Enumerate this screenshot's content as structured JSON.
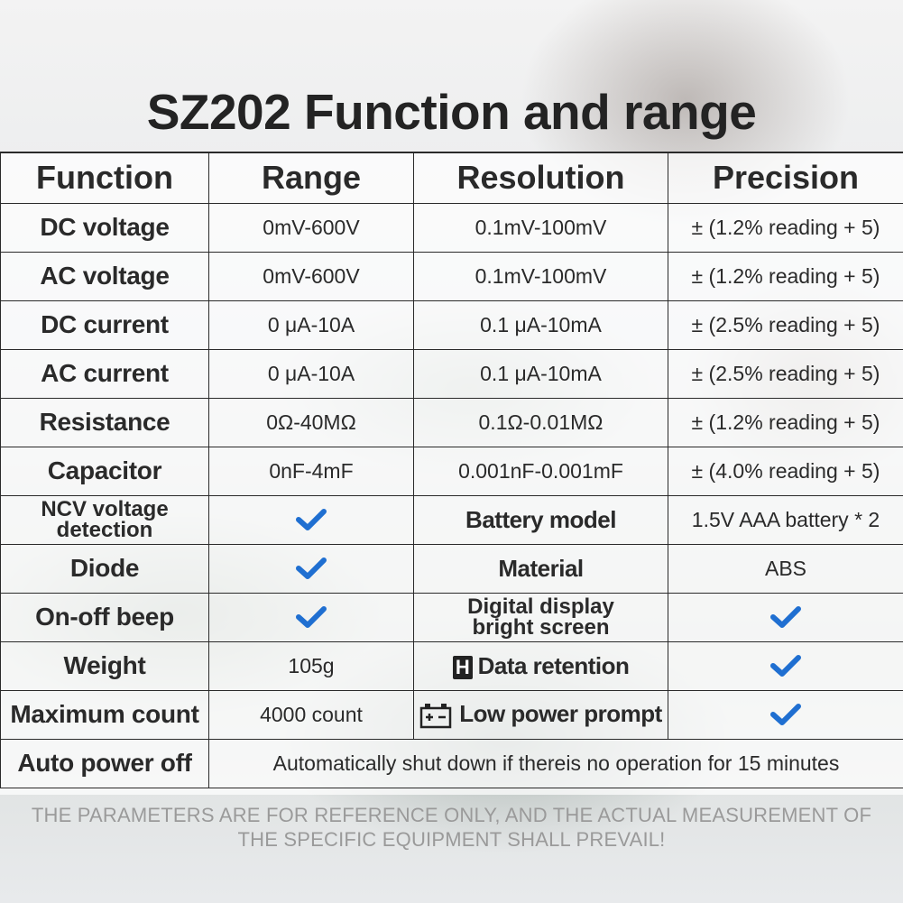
{
  "title": "SZ202 Function and range",
  "headers": [
    "Function",
    "Range",
    "Resolution",
    "Precision"
  ],
  "rows": [
    {
      "function": "DC voltage",
      "range": "0mV-600V",
      "resolution": "0.1mV-100mV",
      "precision": "± (1.2% reading + 5)"
    },
    {
      "function": "AC voltage",
      "range": "0mV-600V",
      "resolution": "0.1mV-100mV",
      "precision": "± (1.2% reading + 5)"
    },
    {
      "function": "DC current",
      "range": "0 μA-10A",
      "resolution": "0.1 μA-10mA",
      "precision": "± (2.5% reading + 5)"
    },
    {
      "function": "AC current",
      "range": "0 μA-10A",
      "resolution": "0.1 μA-10mA",
      "precision": "± (2.5% reading + 5)"
    },
    {
      "function": "Resistance",
      "range": "0Ω-40MΩ",
      "resolution": "0.1Ω-0.01MΩ",
      "precision": "± (1.2% reading + 5)"
    },
    {
      "function": "Capacitor",
      "range": "0nF-4mF",
      "resolution": "0.001nF-0.001mF",
      "precision": "± (4.0% reading + 5)"
    }
  ],
  "features": {
    "ncv_line1": "NCV voltage",
    "ncv_line2": "detection",
    "battery_model_label": "Battery model",
    "battery_model_value": "1.5V AAA battery * 2",
    "diode": "Diode",
    "material_label": "Material",
    "material_value": "ABS",
    "onoff_beep": "On-off beep",
    "digital_display_line1": "Digital display",
    "digital_display_line2": "bright screen",
    "weight_label": "Weight",
    "weight_value": "105g",
    "data_retention_label": "Data retention",
    "data_retention_icon_letter": "H",
    "max_count_label": "Maximum count",
    "max_count_value": "4000 count",
    "low_power_label": "Low power prompt",
    "auto_power_off_label": "Auto power off",
    "auto_power_off_value": "Automatically shut down if thereis no operation for 15 minutes"
  },
  "icons": {
    "check": "check-icon",
    "hold": "hold-icon",
    "battery": "battery-icon"
  },
  "colors": {
    "accent_blue": "#1f6fd1",
    "check_blue": "#1f6fd1"
  },
  "footer": {
    "line1": "THE PARAMETERS ARE FOR REFERENCE ONLY, AND THE ACTUAL MEASUREMENT OF",
    "line2": "THE SPECIFIC EQUIPMENT SHALL PREVAIL!"
  }
}
